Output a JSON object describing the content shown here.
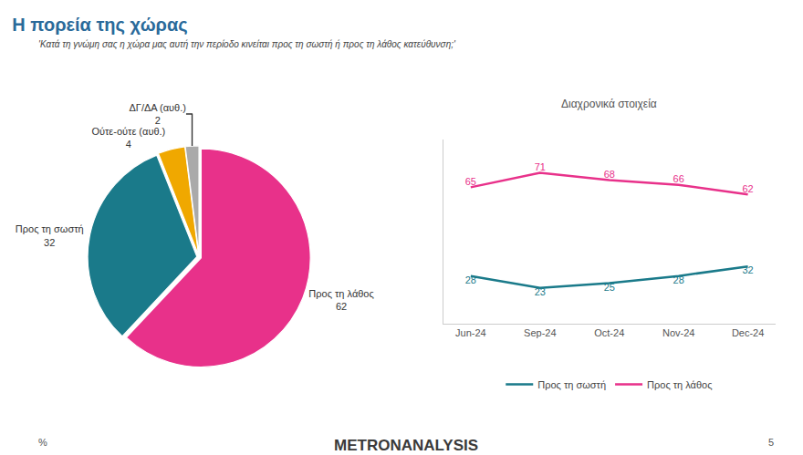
{
  "chart_data": [
    {
      "type": "pie",
      "title": "Η πορεία της χώρας",
      "subtitle": "'Κατά τη γνώμη σας η χώρα μας αυτή την περίοδο κινείται προς τη σωστή ή προς τη λάθος κατεύθυνση;'",
      "annotations": [
        "%",
        "METRONANALYSIS",
        "5"
      ],
      "categories": [
        "Προς τη λάθος",
        "Προς τη σωστή",
        "Ούτε-ούτε (αυθ.)",
        "ΔΓ/ΔΑ (αυθ.)"
      ],
      "values": [
        62,
        32,
        4,
        2
      ],
      "colors": [
        "#e8318a",
        "#1a7a8a",
        "#f0a800",
        "#aaaaaa"
      ],
      "data_labels": true
    },
    {
      "type": "line",
      "title": "Διαχρονικά στοιχεία",
      "categories": [
        "Jun-24",
        "Sep-24",
        "Oct-24",
        "Nov-24",
        "Dec-24"
      ],
      "series": [
        {
          "name": "Προς τη λάθος",
          "color": "#e8318a",
          "values": [
            65,
            71,
            68,
            66,
            62
          ]
        },
        {
          "name": "Προς τη σωστή",
          "color": "#1a7a8a",
          "values": [
            28,
            23,
            25,
            28,
            32
          ]
        }
      ],
      "ylim": [
        8,
        85
      ],
      "tick_labels": "x",
      "grid": false,
      "legend": "bottom",
      "data_labels": true
    }
  ]
}
